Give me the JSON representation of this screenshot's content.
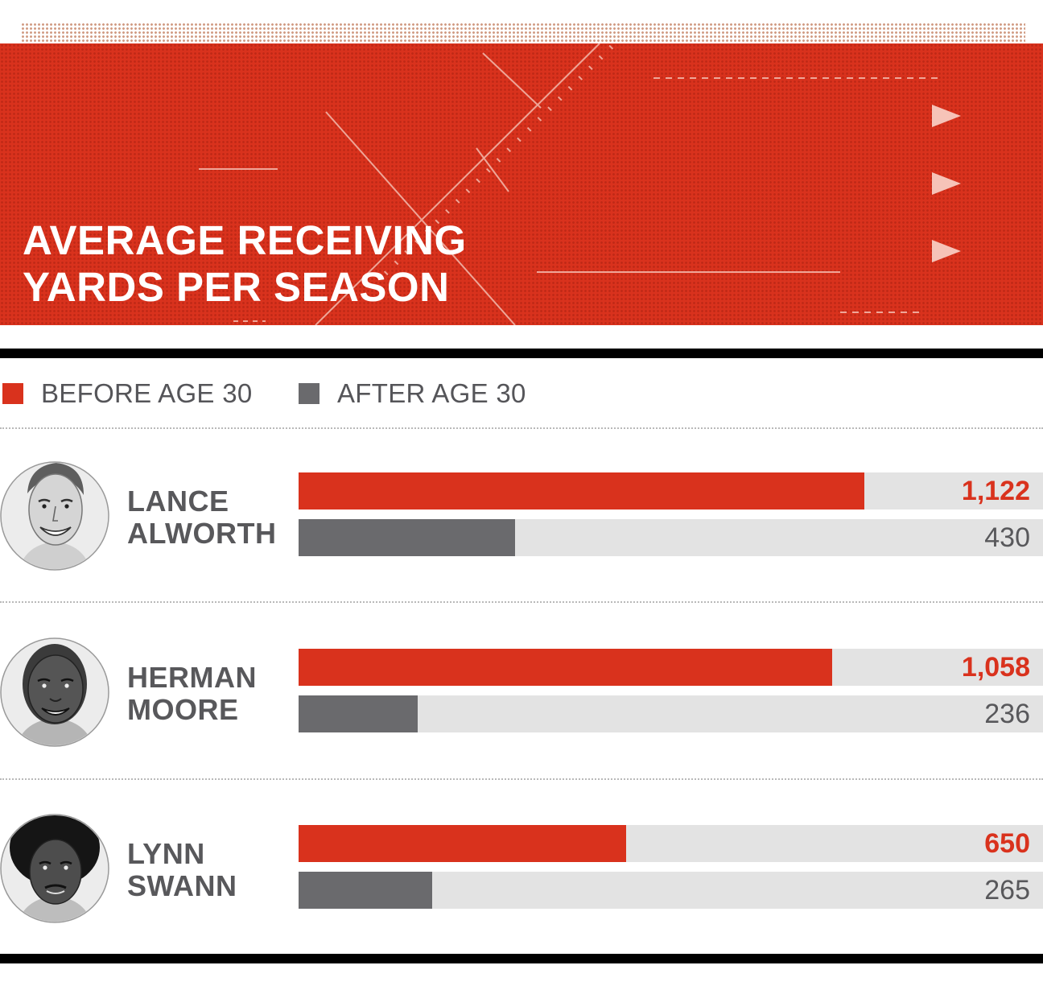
{
  "colors": {
    "before": "#d9321d",
    "after": "#6a6a6d",
    "track": "#e3e3e3",
    "header": "#d9321d"
  },
  "chart_data": {
    "type": "bar",
    "title": "AVERAGE RECEIVING\nYARDS PER SEASON",
    "orientation": "horizontal",
    "categories": [
      "LANCE\nALWORTH",
      "HERMAN\nMOORE",
      "LYNN\nSWANN"
    ],
    "series": [
      {
        "name": "BEFORE AGE 30",
        "values": [
          1122,
          1058,
          650
        ],
        "labels": [
          "1,122",
          "1,058",
          "650"
        ]
      },
      {
        "name": "AFTER AGE 30",
        "values": [
          430,
          236,
          265
        ],
        "labels": [
          "430",
          "236",
          "265"
        ]
      }
    ],
    "xlim": [
      0,
      1476
    ],
    "legend": "top-left",
    "grid": false
  }
}
